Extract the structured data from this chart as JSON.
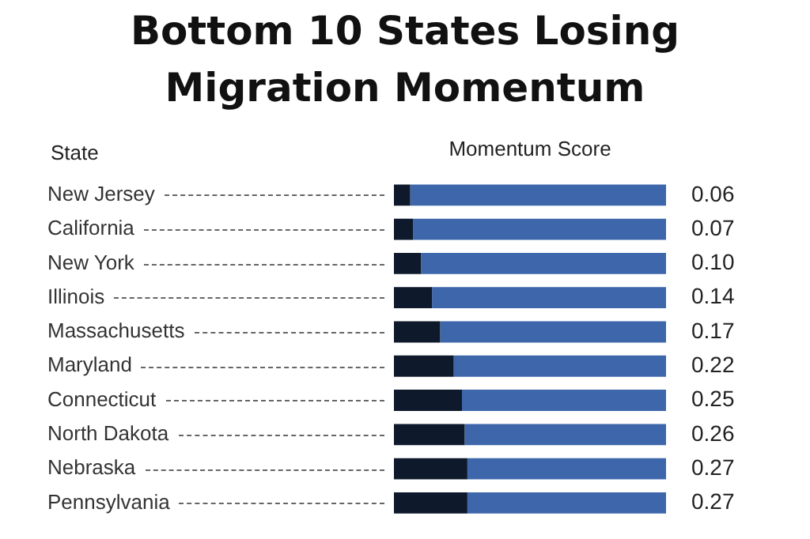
{
  "chart_data": {
    "type": "bar",
    "orientation": "horizontal",
    "stacked": true,
    "title": "Bottom 10 States Losing Migration Momentum",
    "xlabel": "Momentum Score",
    "ylabel": "State",
    "categories": [
      "New Jersey",
      "California",
      "New York",
      "Illinois",
      "Massachusetts",
      "Maryland",
      "Connecticut",
      "North Dakota",
      "Nebraska",
      "Pennsylvania"
    ],
    "series": [
      {
        "color": "#0e1a2c",
        "values": [
          0.06,
          0.07,
          0.1,
          0.14,
          0.17,
          0.22,
          0.25,
          0.26,
          0.27,
          0.27
        ],
        "value_labels": [
          "0.06",
          "0.07",
          "0.10",
          "0.14",
          "0.17",
          "0.22",
          "0.25",
          "0.26",
          "0.27",
          "0.27"
        ]
      },
      {
        "color": "#3d66ab",
        "values": [
          0.94,
          0.93,
          0.9,
          0.86,
          0.83,
          0.78,
          0.75,
          0.74,
          0.73,
          0.73
        ]
      }
    ],
    "xlim": [
      0,
      1
    ],
    "tick_labels": "y",
    "grid": false,
    "legend": false
  }
}
